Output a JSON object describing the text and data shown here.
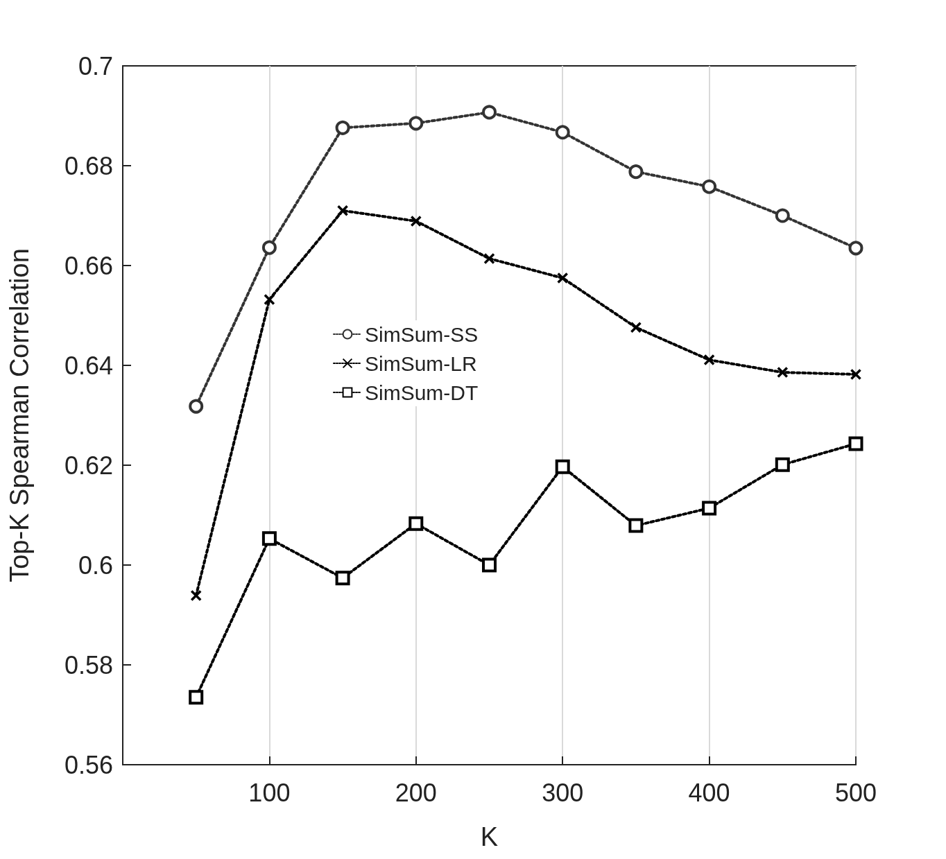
{
  "chart_data": {
    "type": "line",
    "xlabel": "K",
    "ylabel": "Top-K Spearman Correlation",
    "x": [
      50,
      100,
      150,
      200,
      250,
      300,
      350,
      400,
      450,
      500
    ],
    "xlim": [
      0,
      500
    ],
    "xticks": [
      100,
      200,
      300,
      400,
      500
    ],
    "ylim": [
      0.56,
      0.7
    ],
    "yticks": [
      0.56,
      0.58,
      0.6,
      0.62,
      0.64,
      0.66,
      0.68,
      0.7
    ],
    "grid": "x",
    "legend": "left",
    "line_style": "dotted",
    "series": [
      {
        "name": "SimSum-SS",
        "color": "#333333",
        "marker": "circle",
        "values": [
          0.6318,
          0.6636,
          0.6876,
          0.6885,
          0.6907,
          0.6867,
          0.6788,
          0.6758,
          0.67,
          0.6635
        ]
      },
      {
        "name": "SimSum-LR",
        "color": "#000000",
        "marker": "cross",
        "values": [
          0.5939,
          0.6532,
          0.671,
          0.6689,
          0.6614,
          0.6575,
          0.6476,
          0.6411,
          0.6386,
          0.6382
        ]
      },
      {
        "name": "SimSum-DT",
        "color": "#000000",
        "marker": "square",
        "values": [
          0.5735,
          0.6053,
          0.5974,
          0.6083,
          0.6,
          0.6197,
          0.6079,
          0.6114,
          0.6201,
          0.6243
        ]
      }
    ]
  }
}
